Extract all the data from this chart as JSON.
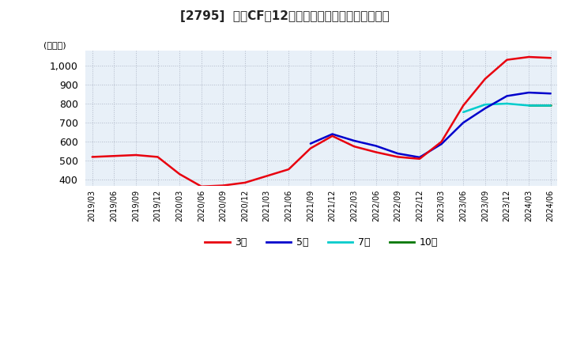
{
  "title": "[2795]  投資CFの12か月移動合計の標準偏差の推移",
  "ylabel": "(百万円)",
  "ylim": [
    370,
    1080
  ],
  "yticks": [
    400,
    500,
    600,
    700,
    800,
    900,
    1000
  ],
  "background_color": "#ffffff",
  "plot_bg_color": "#e8f0f8",
  "grid_color": "#b0b8c8",
  "line_colors": {
    "3year": "#e8000e",
    "5year": "#0000cc",
    "7year": "#00cccc",
    "10year": "#007700"
  },
  "legend_labels": [
    "3年",
    "5年",
    "7年",
    "10年"
  ],
  "x_labels": [
    "2019/03",
    "2019/06",
    "2019/09",
    "2019/12",
    "2020/03",
    "2020/06",
    "2020/09",
    "2020/12",
    "2021/03",
    "2021/06",
    "2021/09",
    "2021/12",
    "2022/03",
    "2022/06",
    "2022/09",
    "2022/12",
    "2023/03",
    "2023/06",
    "2023/09",
    "2023/12",
    "2024/03",
    "2024/06"
  ],
  "data_3year": [
    520,
    525,
    530,
    520,
    430,
    365,
    370,
    385,
    420,
    455,
    565,
    630,
    575,
    545,
    520,
    510,
    600,
    790,
    930,
    1030,
    1045,
    1040
  ],
  "data_5year": [
    null,
    null,
    null,
    null,
    null,
    null,
    null,
    null,
    null,
    null,
    590,
    640,
    605,
    578,
    538,
    518,
    588,
    700,
    775,
    840,
    858,
    853
  ],
  "data_7year": [
    null,
    null,
    null,
    null,
    null,
    null,
    null,
    null,
    null,
    null,
    null,
    null,
    null,
    null,
    null,
    null,
    null,
    755,
    795,
    800,
    790,
    790
  ],
  "data_10year": [
    null,
    null,
    null,
    null,
    null,
    null,
    null,
    null,
    null,
    null,
    null,
    null,
    null,
    null,
    null,
    null,
    null,
    null,
    null,
    null,
    792,
    792
  ]
}
